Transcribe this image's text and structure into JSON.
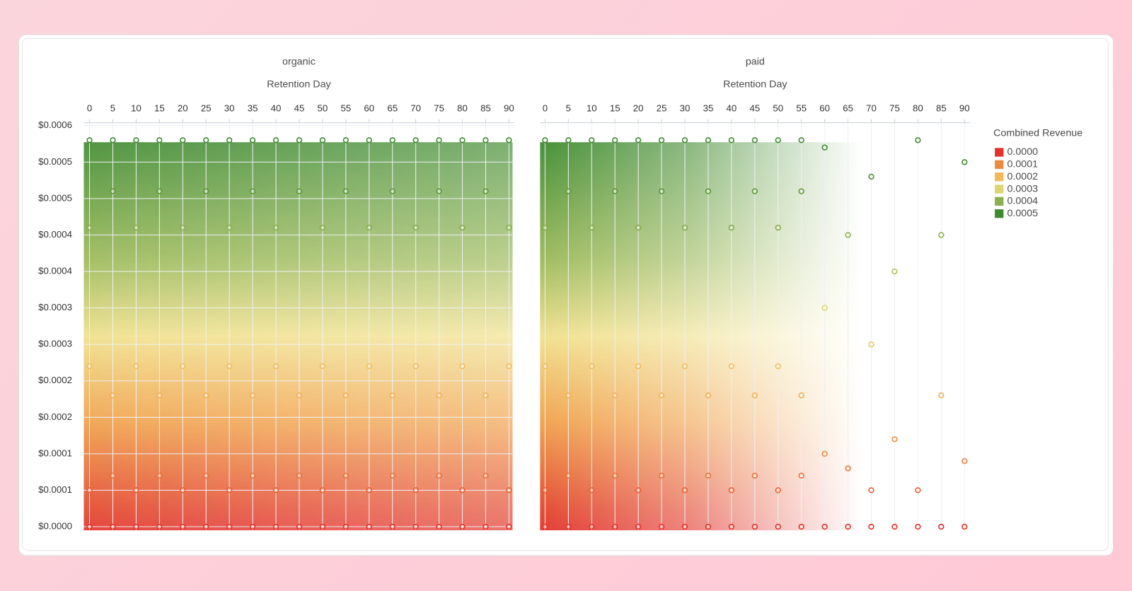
{
  "chart_data": [
    {
      "type": "scatter",
      "title": "organic",
      "x_label": "Retention Day",
      "xlim": [
        0,
        90
      ],
      "xticks": [
        0,
        5,
        10,
        15,
        20,
        25,
        30,
        35,
        40,
        45,
        50,
        55,
        60,
        65,
        70,
        75,
        80,
        85,
        90
      ],
      "ylim": [
        0,
        0.00055
      ],
      "yticks": [
        {
          "value": 0,
          "label": "$0.0000"
        },
        {
          "value": 5e-05,
          "label": "$0.0001"
        },
        {
          "value": 0.0001,
          "label": "$0.0001"
        },
        {
          "value": 0.00015,
          "label": "$0.0002"
        },
        {
          "value": 0.0002,
          "label": "$0.0002"
        },
        {
          "value": 0.00025,
          "label": "$0.0003"
        },
        {
          "value": 0.0003,
          "label": "$0.0003"
        },
        {
          "value": 0.00035,
          "label": "$0.0004"
        },
        {
          "value": 0.0004,
          "label": "$0.0004"
        },
        {
          "value": 0.00045,
          "label": "$0.0005"
        },
        {
          "value": 0.0005,
          "label": "$0.0005"
        },
        {
          "value": 0.00055,
          "label": "$0.0006"
        }
      ],
      "color_scale": {
        "title": "Combined Revenue",
        "levels": [
          {
            "value": 0,
            "label": "0.0000"
          },
          {
            "value": 0.0001,
            "label": "0.0001"
          },
          {
            "value": 0.0002,
            "label": "0.0002"
          },
          {
            "value": 0.0003,
            "label": "0.0003"
          },
          {
            "value": 0.0004,
            "label": "0.0004"
          },
          {
            "value": 0.0005,
            "label": "0.0005"
          }
        ],
        "colors": [
          "#e2322a",
          "#ee8a3c",
          "#f2b85a",
          "#dcd572",
          "#8db04c",
          "#3f8a2f"
        ]
      },
      "x": [
        0,
        0,
        0,
        0,
        0,
        5,
        5,
        5,
        5,
        5,
        10,
        10,
        10,
        10,
        10,
        15,
        15,
        15,
        15,
        15,
        20,
        20,
        20,
        20,
        20,
        25,
        25,
        25,
        25,
        25,
        30,
        30,
        30,
        30,
        30,
        35,
        35,
        35,
        35,
        35,
        40,
        40,
        40,
        40,
        40,
        45,
        45,
        45,
        45,
        45,
        50,
        50,
        50,
        50,
        50,
        55,
        55,
        55,
        55,
        55,
        60,
        60,
        60,
        60,
        60,
        65,
        65,
        65,
        65,
        65,
        70,
        70,
        70,
        70,
        70,
        75,
        75,
        75,
        75,
        75,
        80,
        80,
        80,
        80,
        80,
        85,
        85,
        85,
        85,
        85,
        90,
        90,
        90,
        90,
        90
      ],
      "values": [
        0,
        5e-05,
        0.00022,
        0.00041,
        0.00053,
        0,
        7e-05,
        0.00018,
        0.00046,
        0.00053,
        0,
        5e-05,
        0.00022,
        0.00041,
        0.00053,
        0,
        7e-05,
        0.00018,
        0.00046,
        0.00053,
        0,
        5e-05,
        0.00022,
        0.00041,
        0.00053,
        0,
        7e-05,
        0.00018,
        0.00046,
        0.00053,
        0,
        5e-05,
        0.00022,
        0.00041,
        0.00053,
        0,
        7e-05,
        0.00018,
        0.00046,
        0.00053,
        0,
        5e-05,
        0.00022,
        0.00041,
        0.00053,
        0,
        7e-05,
        0.00018,
        0.00046,
        0.00053,
        0,
        5e-05,
        0.00022,
        0.00041,
        0.00053,
        0,
        7e-05,
        0.00018,
        0.00046,
        0.00053,
        0,
        5e-05,
        0.00022,
        0.00041,
        0.00053,
        0,
        7e-05,
        0.00018,
        0.00046,
        0.00053,
        0,
        5e-05,
        0.00022,
        0.00041,
        0.00053,
        0,
        7e-05,
        0.00018,
        0.00046,
        0.00053,
        0,
        5e-05,
        0.00022,
        0.00041,
        0.00053,
        0,
        7e-05,
        0.00018,
        0.00046,
        0.00053,
        0,
        5e-05,
        0.00022,
        0.00041,
        0.00053
      ]
    },
    {
      "type": "scatter",
      "title": "paid",
      "x_label": "Retention Day",
      "xlim": [
        0,
        90
      ],
      "xticks": [
        0,
        5,
        10,
        15,
        20,
        25,
        30,
        35,
        40,
        45,
        50,
        55,
        60,
        65,
        70,
        75,
        80,
        85,
        90
      ],
      "ylim": [
        0,
        0.00055
      ],
      "x": [
        0,
        0,
        0,
        0,
        0,
        5,
        5,
        5,
        5,
        5,
        10,
        10,
        10,
        10,
        10,
        15,
        15,
        15,
        15,
        15,
        20,
        20,
        20,
        20,
        20,
        25,
        25,
        25,
        25,
        25,
        30,
        30,
        30,
        30,
        30,
        35,
        35,
        35,
        35,
        35,
        40,
        40,
        40,
        40,
        40,
        45,
        45,
        45,
        45,
        45,
        50,
        50,
        50,
        50,
        50,
        55,
        55,
        55,
        55,
        55,
        60,
        60,
        60,
        60,
        65,
        65,
        65,
        70,
        70,
        70,
        70,
        75,
        75,
        75,
        80,
        80,
        80,
        85,
        85,
        85,
        90,
        90,
        90
      ],
      "values": [
        0,
        5e-05,
        0.00022,
        0.00041,
        0.00053,
        0,
        7e-05,
        0.00018,
        0.00046,
        0.00053,
        0,
        5e-05,
        0.00022,
        0.00041,
        0.00053,
        0,
        7e-05,
        0.00018,
        0.00046,
        0.00053,
        0,
        5e-05,
        0.00022,
        0.00041,
        0.00053,
        0,
        7e-05,
        0.00018,
        0.00046,
        0.00053,
        0,
        5e-05,
        0.00022,
        0.00041,
        0.00053,
        0,
        7e-05,
        0.00018,
        0.00046,
        0.00053,
        0,
        5e-05,
        0.00022,
        0.00041,
        0.00053,
        0,
        7e-05,
        0.00018,
        0.00046,
        0.00053,
        0,
        5e-05,
        0.00022,
        0.00041,
        0.00053,
        0,
        7e-05,
        0.00018,
        0.00046,
        0.00053,
        0,
        0.0001,
        0.0003,
        0.00052,
        0,
        8e-05,
        0.0004,
        0,
        5e-05,
        0.00025,
        0.00048,
        0,
        0.00012,
        0.00035,
        0,
        5e-05,
        0.00053,
        0,
        0.00018,
        0.0004,
        0,
        9e-05,
        0.0005
      ]
    }
  ]
}
